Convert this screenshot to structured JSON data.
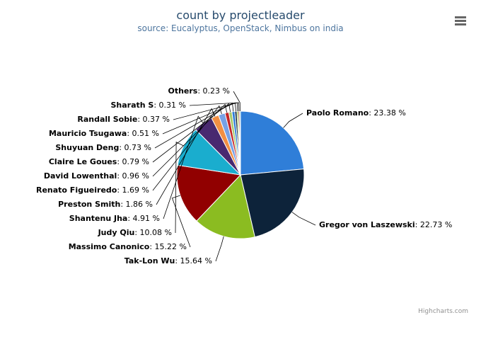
{
  "chart_data": {
    "type": "pie",
    "title": "count by projectleader",
    "subtitle": "source: Eucalyptus, OpenStack, Nimbus on india",
    "credit": "Highcharts.com",
    "categories": [
      "Paolo Romano",
      "Gregor von Laszewski",
      "Tak-Lon Wu",
      "Massimo Canonico",
      "Judy Qiu",
      "Shantenu Jha",
      "Preston Smith",
      "Renato Figueiredo",
      "David Lowenthal",
      "Claire Le Goues",
      "Shuyuan Deng",
      "Mauricio Tsugawa",
      "Randall Sobie",
      "Sharath S",
      "Others"
    ],
    "values": [
      23.38,
      22.73,
      15.64,
      15.22,
      10.08,
      4.91,
      1.86,
      1.69,
      0.96,
      0.79,
      0.73,
      0.51,
      0.37,
      0.31,
      0.23
    ],
    "value_labels": [
      ": 23.38 %",
      ": 22.73 %",
      ": 15.64 %",
      ": 15.22 %",
      ": 10.08 %",
      ": 4.91 %",
      ": 1.86 %",
      ": 1.69 %",
      ": 0.96 %",
      ": 0.79 %",
      ": 0.73 %",
      ": 0.51 %",
      ": 0.37 %",
      ": 0.31 %",
      ": 0.23 %"
    ],
    "colors": [
      "#2f7ed8",
      "#0d233a",
      "#8bbc21",
      "#910000",
      "#1aadce",
      "#492970",
      "#f28f43",
      "#77a1e5",
      "#c42525",
      "#a6c96a",
      "#2f7ed8",
      "#0d233a",
      "#8bbc21",
      "#910000",
      "#1aadce"
    ]
  }
}
